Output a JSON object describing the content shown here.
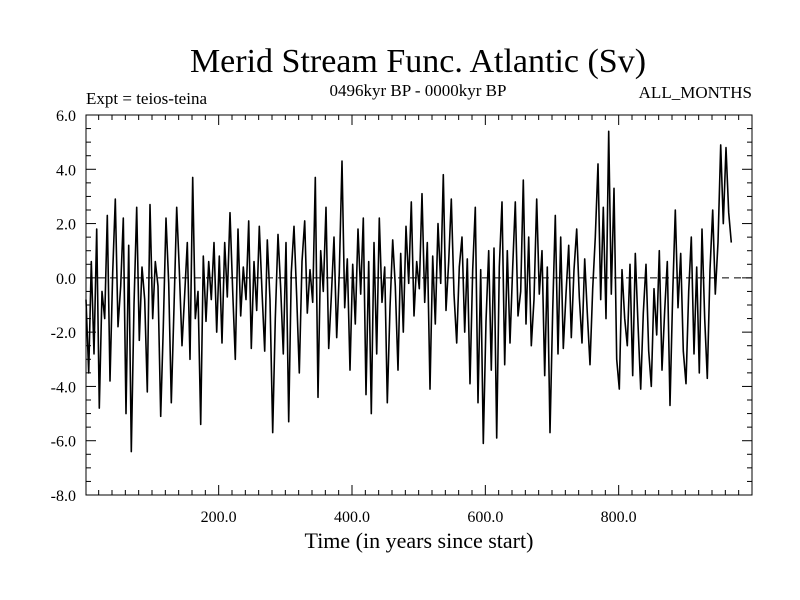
{
  "chart_data": {
    "type": "line",
    "title": "Merid Stream Func. Atlantic (Sv)",
    "subtitle": "0496kyr BP - 0000kyr BP",
    "left_label": "Expt = teios-teina",
    "right_label": "ALL_MONTHS",
    "xlabel": "Time (in years since start)",
    "ylabel": "",
    "xlim": [
      1,
      1000
    ],
    "ylim": [
      -8.0,
      6.0
    ],
    "xticks": [
      200.0,
      400.0,
      600.0,
      800.0
    ],
    "xtick_labels": [
      "200.0",
      "400.0",
      "600.0",
      "800.0"
    ],
    "yticks": [
      -8.0,
      -6.0,
      -4.0,
      -2.0,
      0.0,
      2.0,
      4.0,
      6.0
    ],
    "ytick_labels": [
      "-8.0",
      "-6.0",
      "-4.0",
      "-2.0",
      "0.0",
      "2.0",
      "4.0",
      "6.0"
    ],
    "zero_line": 0.0,
    "series": [
      {
        "name": "Merid Stream Func. Atlantic",
        "color": "#000000",
        "x_start": 1,
        "x_step": 4,
        "values": [
          -0.8,
          -3.5,
          0.6,
          -2.8,
          1.8,
          -4.8,
          -0.5,
          -1.5,
          2.3,
          -3.8,
          0.2,
          2.9,
          -1.8,
          -0.3,
          2.2,
          -5.0,
          1.2,
          -6.4,
          -1.0,
          2.6,
          -2.3,
          0.4,
          -0.8,
          -4.2,
          2.7,
          -1.5,
          0.6,
          -0.3,
          -5.1,
          -1.8,
          2.2,
          -0.2,
          -4.6,
          -1.1,
          2.6,
          0.3,
          -2.5,
          -0.6,
          1.3,
          -3.0,
          3.7,
          -1.5,
          -0.5,
          -5.4,
          0.8,
          -1.6,
          0.6,
          -0.8,
          1.3,
          -2.0,
          0.8,
          -2.4,
          1.3,
          -0.7,
          2.4,
          -0.5,
          -3.0,
          1.8,
          -1.4,
          0.4,
          -0.8,
          2.1,
          -2.6,
          0.6,
          -1.2,
          1.9,
          -0.5,
          -2.7,
          1.4,
          -0.8,
          -5.7,
          -1.5,
          1.6,
          -0.4,
          -2.8,
          1.3,
          -5.3,
          0.2,
          1.9,
          -0.7,
          -3.5,
          0.6,
          2.1,
          -1.3,
          0.3,
          -0.9,
          3.7,
          -4.4,
          1.0,
          -0.5,
          2.6,
          -2.6,
          -0.7,
          1.5,
          -2.2,
          0.2,
          4.3,
          -1.1,
          0.7,
          -3.4,
          0.5,
          -1.7,
          1.8,
          -0.6,
          2.2,
          -4.3,
          0.6,
          -5.0,
          1.3,
          -2.8,
          2.2,
          -0.9,
          0.4,
          -4.6,
          -1.1,
          1.4,
          -0.3,
          -3.4,
          0.9,
          -2.0,
          1.9,
          -0.2,
          2.8,
          -1.4,
          0.6,
          -0.4,
          3.1,
          -0.9,
          1.3,
          -4.1,
          0.8,
          -1.7,
          2.0,
          -0.2,
          3.8,
          -1.2,
          0.6,
          2.9,
          -0.6,
          -2.4,
          0.4,
          1.5,
          -2.0,
          0.7,
          -3.9,
          0.3,
          2.6,
          -4.6,
          0.3,
          -6.1,
          -1.6,
          1.0,
          -3.4,
          1.1,
          -5.9,
          0.4,
          2.8,
          -3.2,
          1.0,
          -2.4,
          0.4,
          2.8,
          -1.4,
          -0.5,
          3.6,
          -1.7,
          1.5,
          -2.5,
          -0.8,
          2.9,
          -0.6,
          1.0,
          -3.6,
          0.4,
          -5.7,
          -1.2,
          2.3,
          -2.8,
          1.5,
          -2.6,
          -0.6,
          1.2,
          -2.2,
          0.3,
          1.8,
          -0.7,
          -2.4,
          0.7,
          -1.3,
          -3.2,
          -0.4,
          1.5,
          4.2,
          -0.8,
          2.6,
          -1.5,
          5.4,
          -0.6,
          3.3,
          -3.0,
          -4.1,
          0.3,
          -1.5,
          -2.5,
          0.5,
          -3.6,
          0.9,
          -1.7,
          -4.1,
          -1.3,
          0.5,
          -2.7,
          -4.0,
          -0.4,
          -2.1,
          1.0,
          -3.4,
          -1.2,
          0.6,
          -4.7,
          -0.6,
          2.5,
          -1.1,
          0.9,
          -2.7,
          -3.9,
          -0.5,
          1.5,
          -2.8,
          0.4,
          -3.5,
          1.8,
          -1.5,
          -3.7,
          0.3,
          2.5,
          -0.6,
          1.3,
          4.9,
          2.0,
          4.8,
          2.4,
          1.3
        ]
      }
    ]
  }
}
